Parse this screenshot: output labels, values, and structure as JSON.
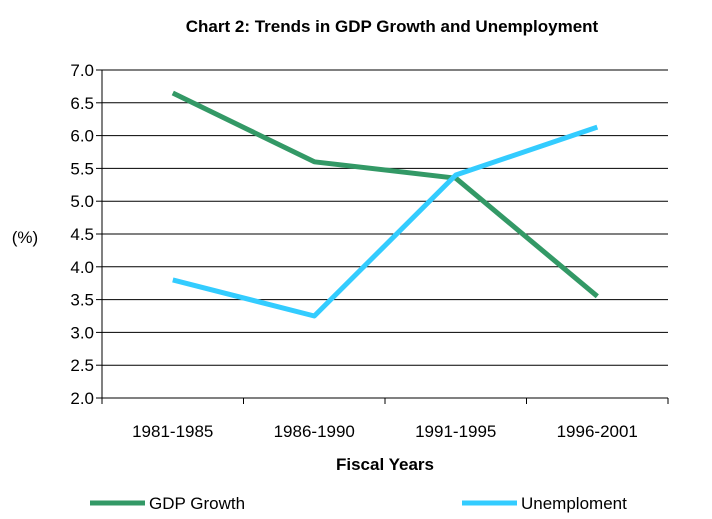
{
  "chart_data": {
    "type": "line",
    "title": "Chart 2: Trends in GDP Growth and Unemployment",
    "xlabel": "Fiscal Years",
    "ylabel": "(%)",
    "categories": [
      "1981-1985",
      "1986-1990",
      "1991-1995",
      "1996-2001"
    ],
    "ylim": [
      2.0,
      7.0
    ],
    "yticks": [
      "2.0",
      "2.5",
      "3.0",
      "3.5",
      "4.0",
      "4.5",
      "5.0",
      "5.5",
      "6.0",
      "6.5",
      "7.0"
    ],
    "grid": true,
    "legend_position": "bottom",
    "series": [
      {
        "name": "GDP Growth",
        "color": "#339966",
        "values": [
          6.65,
          5.6,
          5.35,
          3.55
        ]
      },
      {
        "name": "Unemploment",
        "color": "#33CCFF",
        "values": [
          3.8,
          3.25,
          5.4,
          6.13
        ]
      }
    ]
  }
}
